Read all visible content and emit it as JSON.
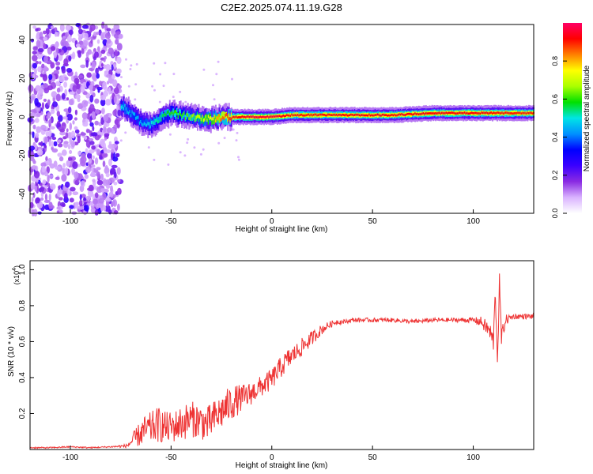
{
  "title": "C2E2.2025.074.11.19.G28",
  "chart_data": [
    {
      "type": "heatmap",
      "xlabel": "Height of straight line (km)",
      "ylabel": "Frequency (Hz)",
      "xlim": [
        -120,
        130
      ],
      "ylim": [
        -50,
        48
      ],
      "x_ticks": [
        -100,
        -50,
        0,
        50,
        100
      ],
      "y_ticks": [
        40,
        20,
        0,
        -20,
        -40
      ],
      "colorbar": {
        "label": "Normalized spectral amplitude",
        "range": [
          0,
          1
        ],
        "ticks": [
          0.0,
          0.2,
          0.4,
          0.6,
          0.8
        ],
        "colors": [
          "#ffffff",
          "#d9b3ff",
          "#8a2be2",
          "#3b00ff",
          "#0000ff",
          "#0090ff",
          "#00e5e5",
          "#00e000",
          "#aaff00",
          "#ffff00",
          "#ff8000",
          "#ff0000",
          "#ff0066"
        ]
      },
      "features": {
        "noise_region_x": [
          -120,
          -75
        ],
        "signal_onset_x": -75,
        "ridge": {
          "x": [
            -75,
            -70,
            -65,
            -60,
            -55,
            -50,
            -45,
            -40,
            -35,
            -30,
            -25,
            -20,
            -10,
            0,
            10,
            20,
            40,
            60,
            80,
            100,
            120,
            130
          ],
          "freq_hz": [
            6,
            2,
            -3,
            -4,
            0,
            2,
            1,
            0,
            -1,
            -1,
            0,
            0,
            0,
            0,
            1,
            1,
            1,
            1,
            2,
            2,
            2,
            2
          ],
          "amplitude": [
            0.5,
            0.45,
            0.45,
            0.5,
            0.55,
            0.6,
            0.6,
            0.65,
            0.7,
            0.75,
            0.85,
            0.9,
            0.95,
            0.95,
            0.9,
            0.9,
            0.92,
            0.92,
            0.92,
            0.92,
            0.9,
            0.9
          ]
        }
      }
    },
    {
      "type": "line",
      "xlabel": "Height of straight line (km)",
      "ylabel": "SNR (10 * v/v)",
      "y_multiplier_label": "(x10",
      "y_multiplier_exponent": "4",
      "xlim": [
        -120,
        130
      ],
      "ylim": [
        0,
        1.05
      ],
      "x_ticks": [
        -100,
        -50,
        0,
        50,
        100
      ],
      "y_ticks": [
        0.2,
        0.4,
        0.6,
        0.8,
        1.0
      ],
      "line_color": "#ee3333",
      "series": [
        {
          "x": [
            -120,
            -110,
            -100,
            -90,
            -80,
            -72,
            -68,
            -64,
            -60,
            -56,
            -52,
            -48,
            -44,
            -40,
            -36,
            -32,
            -28,
            -24,
            -20,
            -16,
            -12,
            -8,
            -4,
            0,
            4,
            8,
            12,
            16,
            20,
            24,
            28,
            32,
            36,
            40,
            50,
            60,
            70,
            80,
            90,
            100,
            104,
            108,
            110,
            111,
            112,
            113,
            114,
            116,
            120,
            125,
            130
          ],
          "values": [
            0.01,
            0.01,
            0.015,
            0.01,
            0.015,
            0.02,
            0.06,
            0.1,
            0.12,
            0.14,
            0.12,
            0.13,
            0.15,
            0.17,
            0.16,
            0.14,
            0.18,
            0.22,
            0.26,
            0.28,
            0.3,
            0.33,
            0.36,
            0.39,
            0.45,
            0.5,
            0.54,
            0.58,
            0.62,
            0.66,
            0.69,
            0.71,
            0.71,
            0.72,
            0.72,
            0.72,
            0.71,
            0.72,
            0.72,
            0.72,
            0.71,
            0.66,
            0.6,
            0.88,
            0.5,
            0.92,
            0.62,
            0.72,
            0.74,
            0.74,
            0.74
          ],
          "noise_amplitude": [
            0.004,
            0.004,
            0.004,
            0.004,
            0.004,
            0.01,
            0.05,
            0.08,
            0.09,
            0.1,
            0.09,
            0.09,
            0.1,
            0.1,
            0.1,
            0.1,
            0.1,
            0.1,
            0.1,
            0.08,
            0.07,
            0.06,
            0.06,
            0.06,
            0.06,
            0.06,
            0.05,
            0.05,
            0.04,
            0.03,
            0.02,
            0.015,
            0.012,
            0.012,
            0.012,
            0.012,
            0.012,
            0.012,
            0.012,
            0.015,
            0.03,
            0.05,
            0.06,
            0.06,
            0.06,
            0.06,
            0.05,
            0.03,
            0.015,
            0.015,
            0.015
          ]
        }
      ]
    }
  ]
}
